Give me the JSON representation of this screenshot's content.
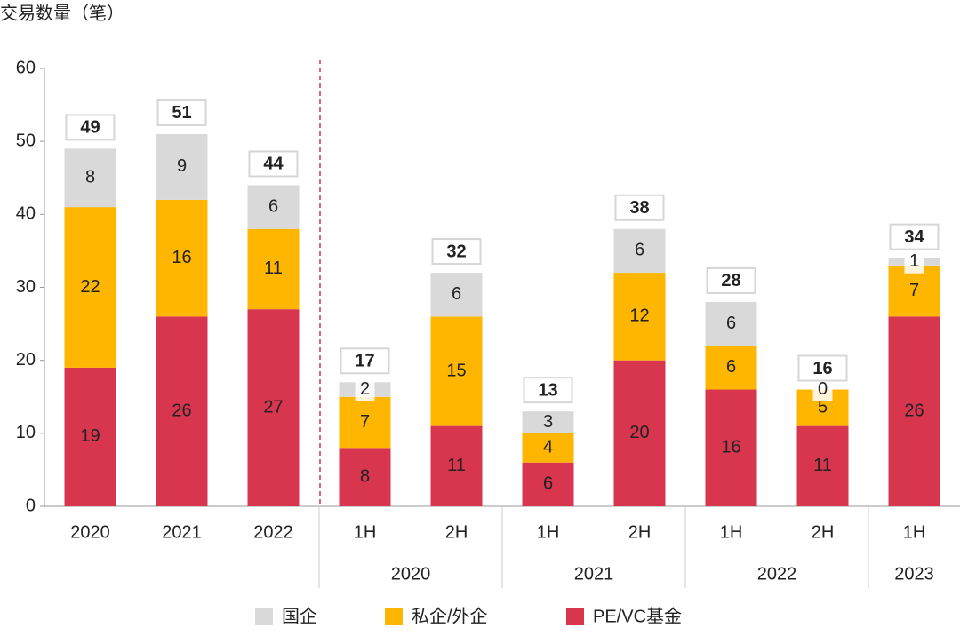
{
  "chart_data": {
    "type": "stacked-bar",
    "y_label": "交易数量（笔）",
    "categories": [
      "2020",
      "2021",
      "2022",
      "1H",
      "2H",
      "1H",
      "2H",
      "1H",
      "2H",
      "1H"
    ],
    "group_labels": [
      null,
      null,
      null,
      "2020",
      null,
      "2021",
      null,
      "2022",
      null,
      "2023"
    ],
    "series": [
      {
        "name": "PE/VC基金",
        "color": "#d8354f",
        "values": [
          19,
          26,
          27,
          8,
          11,
          6,
          20,
          16,
          11,
          26
        ]
      },
      {
        "name": "私企/外企",
        "color": "#ffb600",
        "values": [
          22,
          16,
          11,
          7,
          15,
          4,
          12,
          6,
          5,
          7
        ]
      },
      {
        "name": "国企",
        "color": "#d9d9d9",
        "values": [
          8,
          9,
          6,
          2,
          6,
          3,
          6,
          6,
          0,
          1
        ]
      }
    ],
    "totals": [
      49,
      51,
      44,
      17,
      32,
      13,
      38,
      28,
      16,
      34
    ],
    "ylim": [
      0,
      60
    ],
    "yticks": [
      0,
      10,
      20,
      30,
      40,
      50,
      60
    ],
    "grid": false
  }
}
